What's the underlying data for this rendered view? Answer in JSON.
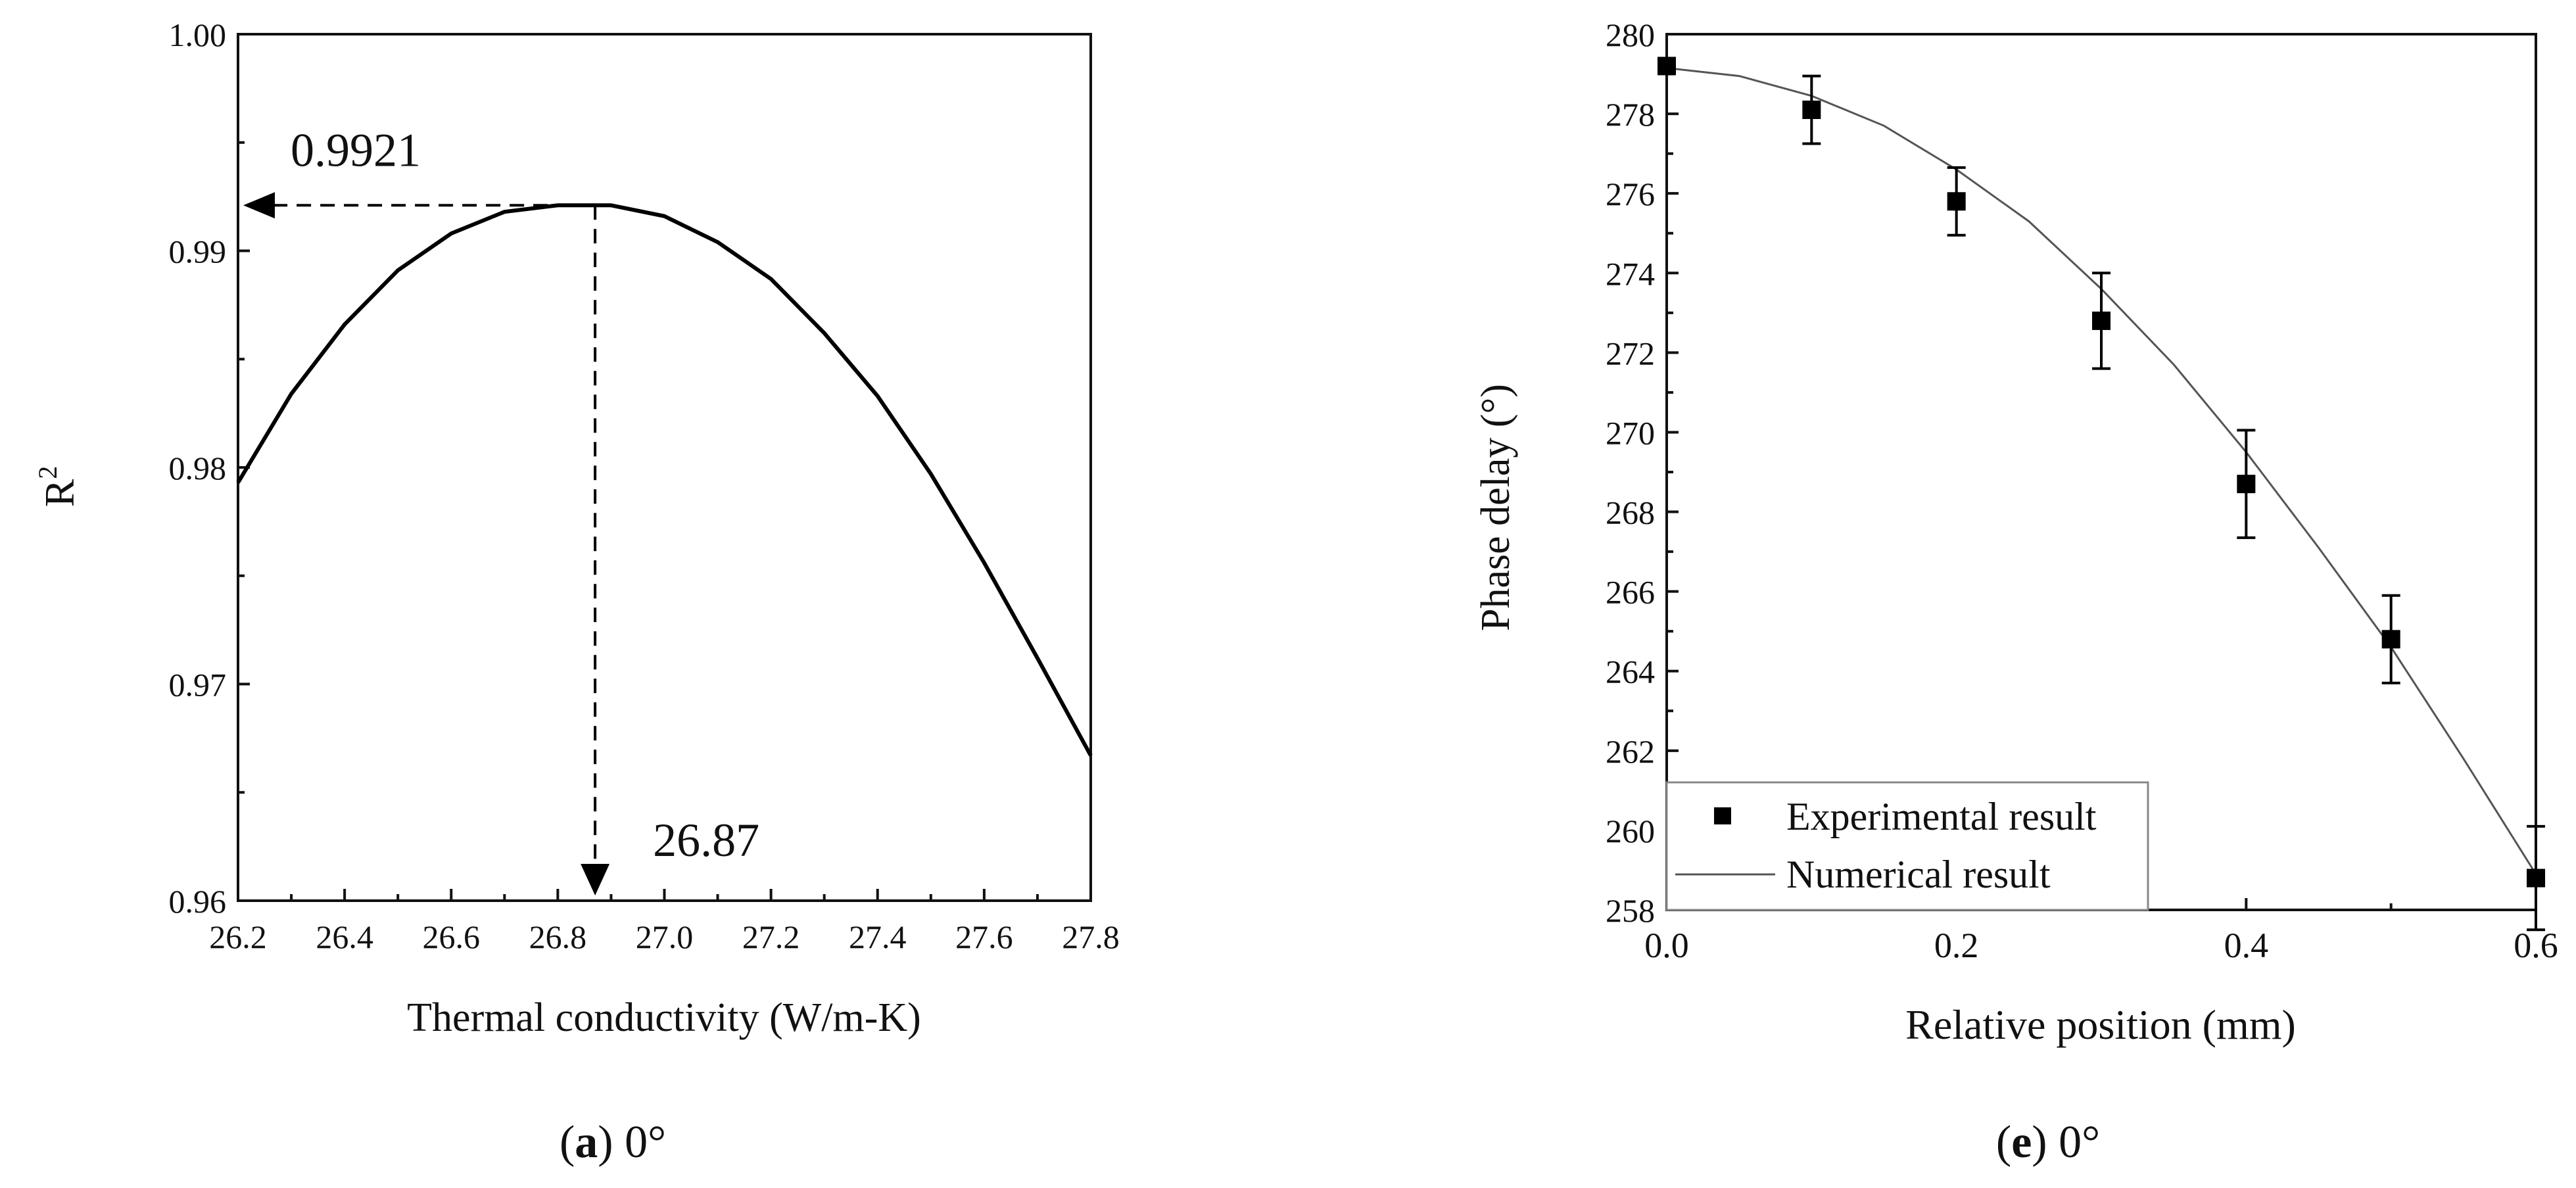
{
  "chart_data": [
    {
      "type": "line",
      "caption_bold": "a",
      "caption_rest": "0°",
      "xlabel": "Thermal conductivity (W/m-K)",
      "ylabel_base": "R",
      "ylabel_sup": "2",
      "xlim": [
        26.2,
        27.8
      ],
      "ylim": [
        0.96,
        1.0
      ],
      "xticks": [
        "26.2",
        "26.4",
        "26.6",
        "26.8",
        "27.0",
        "27.2",
        "27.4",
        "27.6",
        "27.8"
      ],
      "yticks": [
        "0.96",
        "0.97",
        "0.98",
        "0.99",
        "1.00"
      ],
      "series": [
        {
          "x": [
            26.2,
            26.3,
            26.4,
            26.5,
            26.6,
            26.7,
            26.8,
            26.87,
            26.9,
            27.0,
            27.1,
            27.2,
            27.3,
            27.4,
            27.5,
            27.6,
            27.7,
            27.8
          ],
          "y": [
            0.9793,
            0.9834,
            0.9866,
            0.9891,
            0.9908,
            0.9918,
            0.9921,
            0.9921,
            0.9921,
            0.9916,
            0.9904,
            0.9887,
            0.9862,
            0.9833,
            0.9797,
            0.9756,
            0.9712,
            0.9667
          ]
        }
      ],
      "annotations": [
        {
          "text": "0.9921",
          "x": 26.87,
          "y": 0.9921,
          "arrow": "to-y-axis"
        },
        {
          "text": "26.87",
          "x": 26.87,
          "y": 0.9921,
          "arrow": "to-x-axis"
        }
      ]
    },
    {
      "type": "scatter",
      "caption_bold": "e",
      "caption_rest": "0°",
      "xlabel": "Relative position (mm)",
      "ylabel": "Phase delay (°)",
      "xlim": [
        0,
        0.6
      ],
      "ylim": [
        258,
        280
      ],
      "xticks": [
        "0.0",
        "0.2",
        "0.4",
        "0.6"
      ],
      "yticks": [
        "258",
        "260",
        "262",
        "264",
        "266",
        "268",
        "270",
        "272",
        "274",
        "276",
        "278",
        "280"
      ],
      "legend_position": "bottom-left",
      "series": [
        {
          "name": "Experimental result",
          "marker": "square",
          "x": [
            0.0,
            0.1,
            0.2,
            0.3,
            0.4,
            0.5,
            0.6
          ],
          "y": [
            279.2,
            278.1,
            275.8,
            272.8,
            268.7,
            264.8,
            258.8
          ],
          "err": [
            0.0,
            0.85,
            0.85,
            1.2,
            1.35,
            1.1,
            1.3
          ]
        },
        {
          "name": "Numerical result",
          "line": "thin",
          "x": [
            0.0,
            0.05,
            0.1,
            0.15,
            0.2,
            0.25,
            0.3,
            0.35,
            0.4,
            0.45,
            0.5,
            0.55,
            0.6
          ],
          "y": [
            279.15,
            278.95,
            278.45,
            277.7,
            276.6,
            275.3,
            273.6,
            271.7,
            269.5,
            267.1,
            264.6,
            261.8,
            258.9
          ]
        }
      ]
    }
  ]
}
